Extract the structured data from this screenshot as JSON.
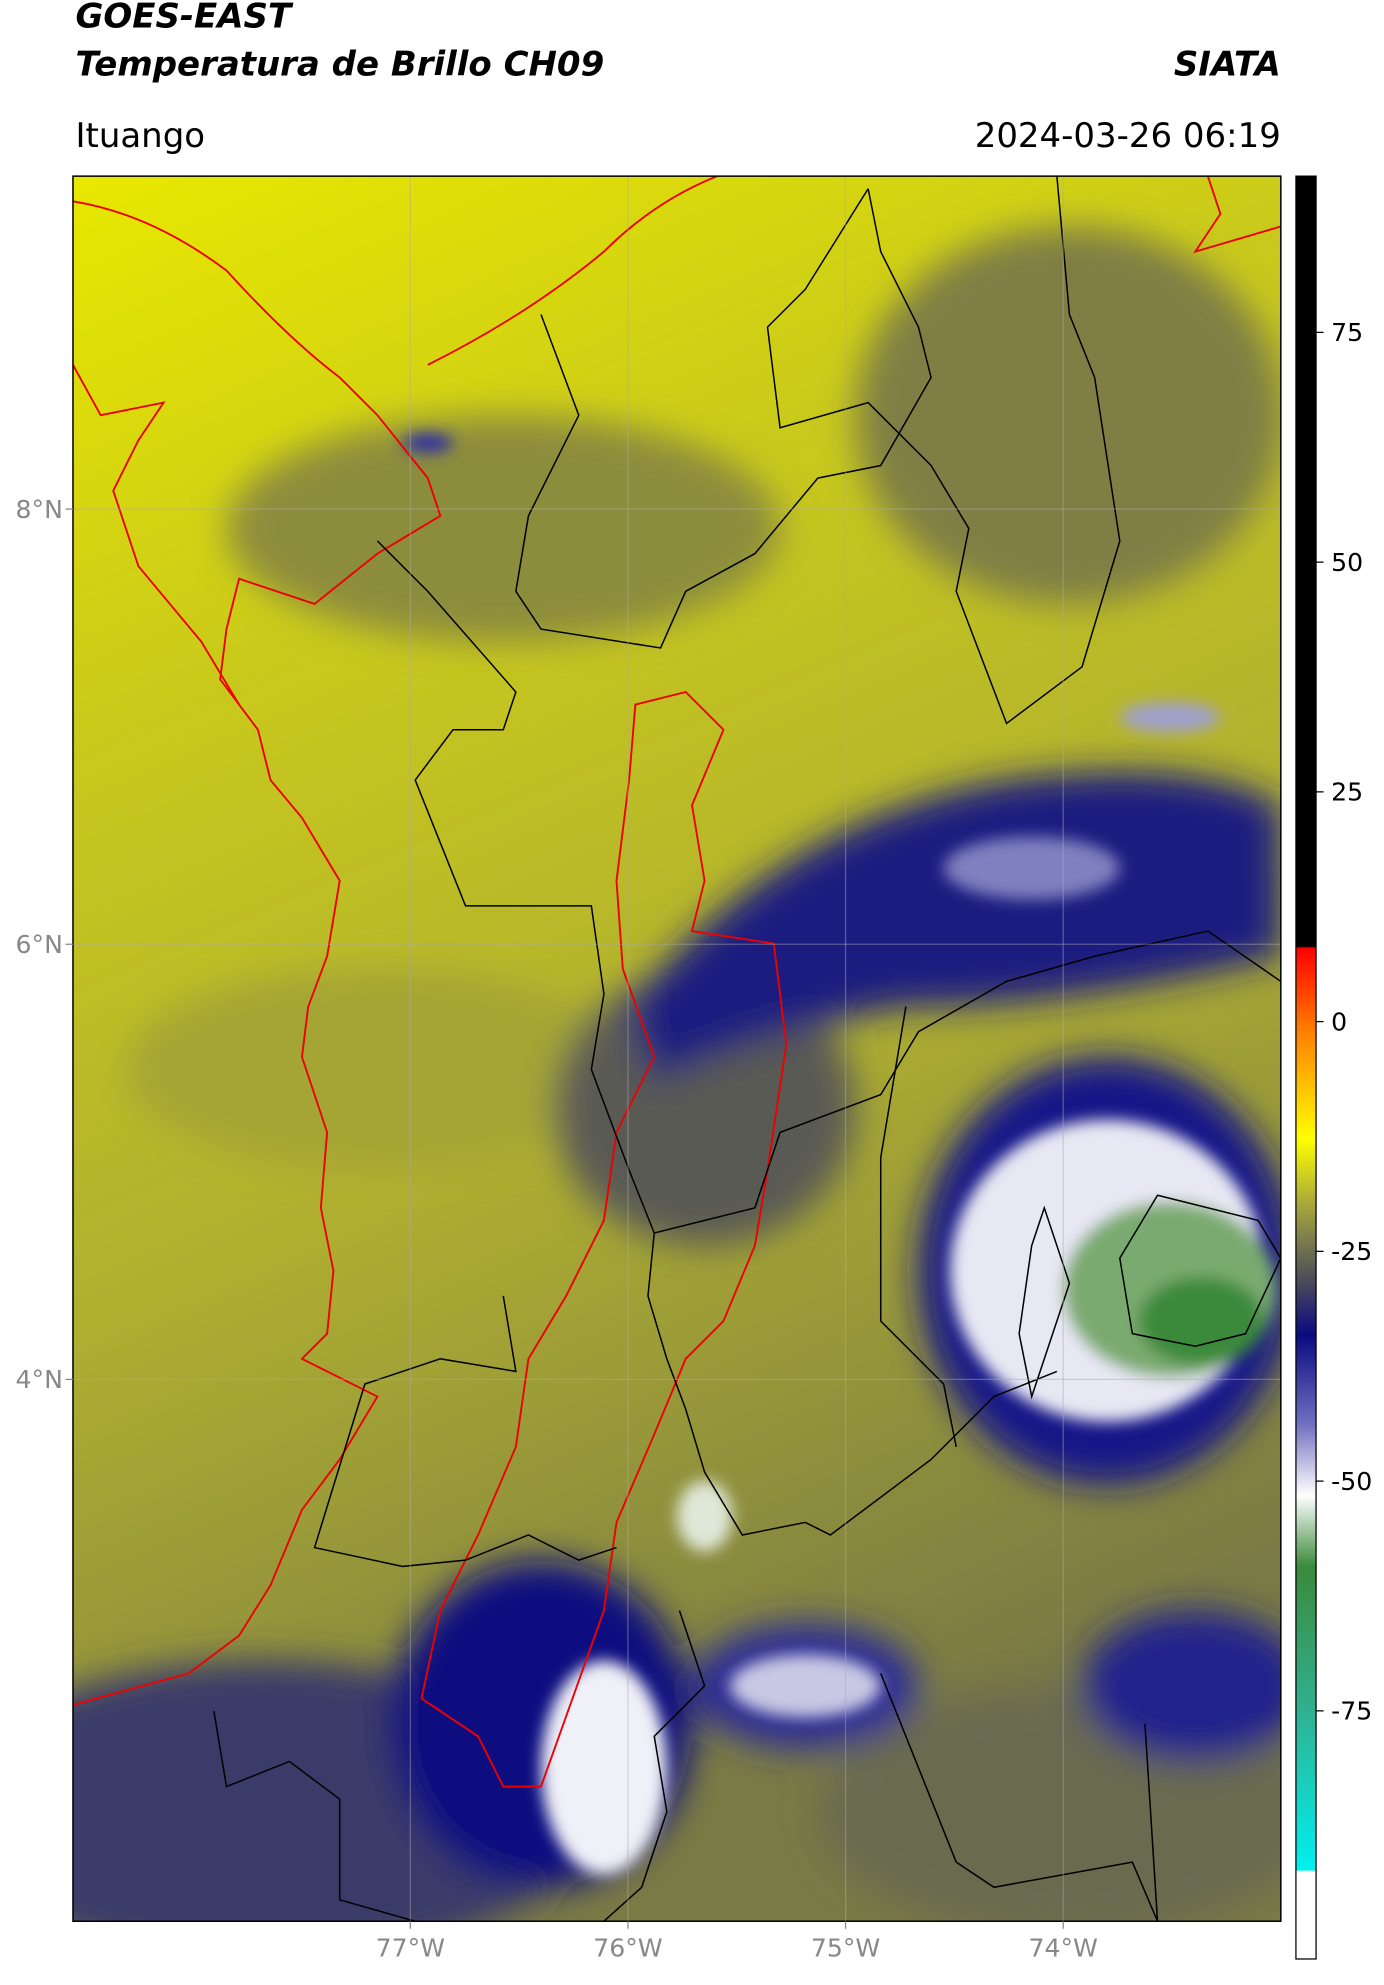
{
  "header": {
    "satellite": "GOES-EAST",
    "title": "Temperatura de Brillo CH09",
    "source": "SIATA",
    "location": "Ituango",
    "datetime": "2024-03-26 06:19"
  },
  "map": {
    "xlim": [
      -78.55,
      -73.0
    ],
    "ylim": [
      1.51,
      9.53
    ],
    "xticks": [
      {
        "value": -77,
        "label": "77°W"
      },
      {
        "value": -76,
        "label": "76°W"
      },
      {
        "value": -75,
        "label": "75°W"
      },
      {
        "value": -74,
        "label": "74°W"
      }
    ],
    "yticks": [
      {
        "value": 8,
        "label": "8°N"
      },
      {
        "value": 6,
        "label": "6°N"
      },
      {
        "value": 4,
        "label": "4°N"
      }
    ],
    "grid": true
  },
  "colorbar": {
    "clim": [
      -102,
      92
    ],
    "ticks": [
      75,
      50,
      25,
      0,
      -25,
      -50,
      -75
    ]
  }
}
